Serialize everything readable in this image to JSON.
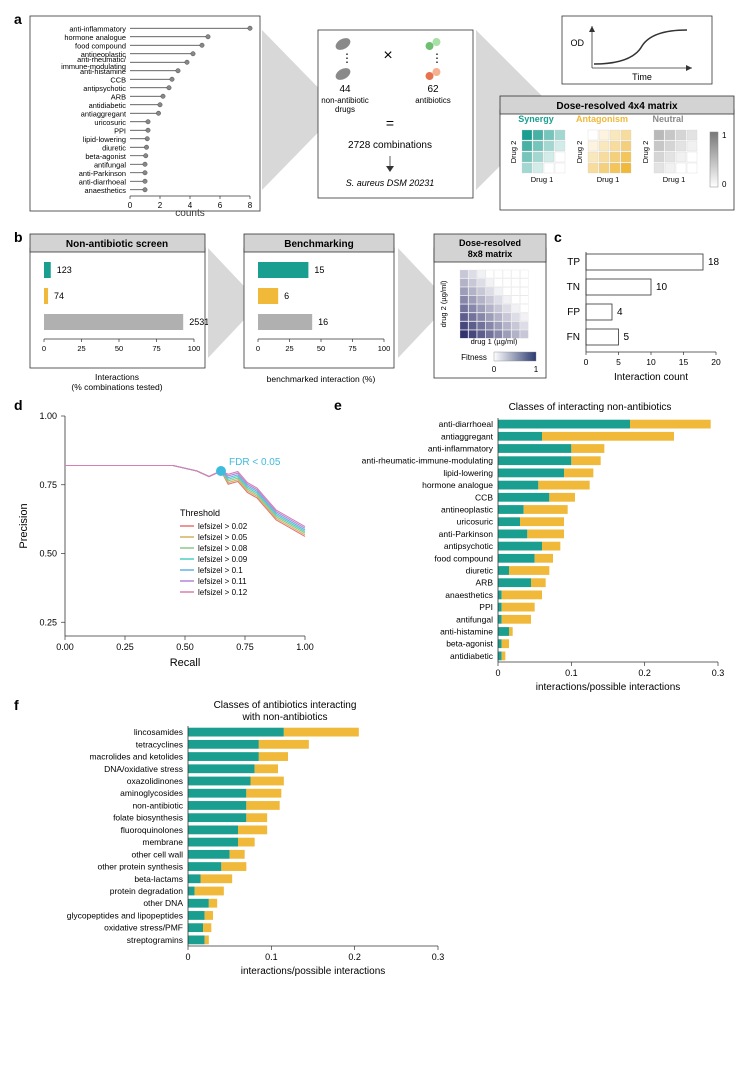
{
  "colors": {
    "synergy": "#1a9e8f",
    "antagonism": "#f0b93a",
    "neutral": "#b0b0b0",
    "grid": "#e0e0e0",
    "text": "#333333",
    "header_bg": "#d3d3d3",
    "highlight": "#3fbbdd"
  },
  "panel_a": {
    "lollipop": {
      "xlabel": "counts",
      "xlim": [
        0,
        8
      ],
      "xticks": [
        0,
        2,
        4,
        6,
        8
      ],
      "categories": [
        "anti-inflammatory",
        "hormone analogue",
        "food compound",
        "antineoplastic",
        "anti-rheumatic/\nimmune-modulating",
        "anti-histamine",
        "CCB",
        "antipsychotic",
        "ARB",
        "antidiabetic",
        "antiaggregant",
        "uricosuric",
        "PPI",
        "lipid-lowering",
        "diuretic",
        "beta-agonist",
        "antifungal",
        "anti-Parkinson",
        "anti-diarrhoeal",
        "anaesthetics"
      ],
      "values": [
        8,
        5.2,
        4.8,
        4.2,
        3.8,
        3.2,
        2.8,
        2.6,
        2.2,
        2.0,
        1.9,
        1.2,
        1.2,
        1.15,
        1.1,
        1.05,
        1.0,
        1.0,
        1.0,
        1.0
      ]
    },
    "middle": {
      "non_antibiotic_count": "44",
      "non_antibiotic_label": "non-antibiotic\ndrugs",
      "antibiotic_count": "62",
      "antibiotic_label": "antibiotics",
      "combinations": "2728 combinations",
      "strain": "S. aureus DSM 20231"
    },
    "od_curve": {
      "ylabel": "OD",
      "xlabel": "Time"
    },
    "matrix": {
      "title": "Dose-resolved 4x4 matrix",
      "labels": [
        "Synergy",
        "Antagonism",
        "Neutral"
      ],
      "colors": [
        "#1a9e8f",
        "#f0b93a",
        "#8a8a8a"
      ],
      "axis_drug1": "Drug 1",
      "axis_drug2": "Drug 2",
      "scale_max": "1",
      "scale_min": "0"
    }
  },
  "panel_b": {
    "screen": {
      "title": "Non-antibiotic screen",
      "bars": [
        {
          "value": 123,
          "pct": 4.5,
          "color": "#1a9e8f"
        },
        {
          "value": 74,
          "pct": 2.7,
          "color": "#f0b93a"
        },
        {
          "value": 2531,
          "pct": 92.8,
          "color": "#b0b0b0"
        }
      ],
      "xlabel": "Interactions\n(% combinations tested)",
      "xticks": [
        0,
        25,
        50,
        75,
        100
      ]
    },
    "bench": {
      "title": "Benchmarking",
      "bars": [
        {
          "value": 15,
          "pct": 40,
          "color": "#1a9e8f"
        },
        {
          "value": 6,
          "pct": 16,
          "color": "#f0b93a"
        },
        {
          "value": 16,
          "pct": 43,
          "color": "#b0b0b0"
        }
      ],
      "xlabel": "benchmarked interaction (%)",
      "xticks": [
        0,
        25,
        50,
        75,
        100
      ]
    },
    "matrix8": {
      "title": "Dose-resolved\n8x8 matrix",
      "ylabel": "drug 2 (µg/ml)",
      "xlabel": "drug 1 (µg/ml)",
      "scale_label": "Fitness",
      "scale_min": "0",
      "scale_max": "1"
    }
  },
  "panel_c": {
    "xlabel": "Interaction count",
    "xticks": [
      0,
      5,
      10,
      15,
      20
    ],
    "categories": [
      "TP",
      "TN",
      "FP",
      "FN"
    ],
    "values": [
      18,
      10,
      4,
      5
    ]
  },
  "panel_d": {
    "xlabel": "Recall",
    "ylabel": "Precision",
    "xticks": [
      "0.00",
      "0.25",
      "0.50",
      "0.75",
      "1.00"
    ],
    "yticks": [
      "0.25",
      "0.50",
      "0.75",
      "1.00"
    ],
    "ylim": [
      0.2,
      1.0
    ],
    "fdr_label": "FDR < 0.05",
    "legend_title": "Threshold",
    "legend_items": [
      {
        "label": "lefsizel > 0.02",
        "color": "#e57373"
      },
      {
        "label": "lefsizel > 0.05",
        "color": "#d4b15f"
      },
      {
        "label": "lefsizel > 0.08",
        "color": "#8bc98b"
      },
      {
        "label": "lefsizel > 0.09",
        "color": "#4dd0c0"
      },
      {
        "label": "lefsizel > 0.1",
        "color": "#66b0e6"
      },
      {
        "label": "lefsizel > 0.11",
        "color": "#b085d9"
      },
      {
        "label": "lefsizel > 0.12",
        "color": "#d97fb0"
      }
    ],
    "curve": [
      [
        0.0,
        0.82
      ],
      [
        0.45,
        0.82
      ],
      [
        0.55,
        0.8
      ],
      [
        0.6,
        0.78
      ],
      [
        0.65,
        0.8
      ],
      [
        0.68,
        0.77
      ],
      [
        0.72,
        0.78
      ],
      [
        0.76,
        0.74
      ],
      [
        0.8,
        0.72
      ],
      [
        0.84,
        0.68
      ],
      [
        0.88,
        0.64
      ],
      [
        0.92,
        0.62
      ],
      [
        0.96,
        0.6
      ],
      [
        1.0,
        0.58
      ]
    ],
    "fdr_point": [
      0.65,
      0.8
    ]
  },
  "panel_e": {
    "title": "Classes of interacting non-antibiotics",
    "xlabel": "interactions/possible interactions",
    "xticks": [
      0,
      0.1,
      0.2,
      0.3
    ],
    "categories": [
      "anti-diarrhoeal",
      "antiaggregant",
      "anti-inflammatory",
      "anti-rheumatic-immune-modulating",
      "lipid-lowering",
      "hormone analogue",
      "CCB",
      "antineoplastic",
      "uricosuric",
      "anti-Parkinson",
      "antipsychotic",
      "food compound",
      "diuretic",
      "ARB",
      "anaesthetics",
      "PPI",
      "antifungal",
      "anti-histamine",
      "beta-agonist",
      "antidiabetic"
    ],
    "syn": [
      0.18,
      0.06,
      0.1,
      0.1,
      0.09,
      0.055,
      0.07,
      0.035,
      0.03,
      0.04,
      0.06,
      0.05,
      0.015,
      0.045,
      0.005,
      0.005,
      0.005,
      0.015,
      0.005,
      0.005
    ],
    "ant": [
      0.11,
      0.18,
      0.045,
      0.04,
      0.04,
      0.07,
      0.035,
      0.06,
      0.06,
      0.05,
      0.025,
      0.025,
      0.055,
      0.02,
      0.055,
      0.045,
      0.04,
      0.005,
      0.01,
      0.005
    ]
  },
  "panel_f": {
    "title": "Classes of antibiotics interacting\nwith non-antibiotics",
    "xlabel": "interactions/possible interactions",
    "xticks": [
      0,
      0.1,
      0.2,
      0.3
    ],
    "categories": [
      "lincosamides",
      "tetracyclines",
      "macrolides and ketolides",
      "DNA/oxidative stress",
      "oxazolidinones",
      "aminoglycosides",
      "non-antibiotic",
      "folate biosynthesis",
      "fluoroquinolones",
      "membrane",
      "other cell wall",
      "other protein synthesis",
      "beta-lactams",
      "protein degradation",
      "other DNA",
      "glycopeptides and lipopeptides",
      "oxidative stress/PMF",
      "streptogramins"
    ],
    "syn": [
      0.115,
      0.085,
      0.085,
      0.08,
      0.075,
      0.07,
      0.07,
      0.07,
      0.06,
      0.06,
      0.05,
      0.04,
      0.015,
      0.008,
      0.025,
      0.02,
      0.018,
      0.02
    ],
    "ant": [
      0.09,
      0.06,
      0.035,
      0.028,
      0.04,
      0.042,
      0.04,
      0.025,
      0.035,
      0.02,
      0.018,
      0.03,
      0.038,
      0.035,
      0.01,
      0.01,
      0.01,
      0.005
    ]
  }
}
